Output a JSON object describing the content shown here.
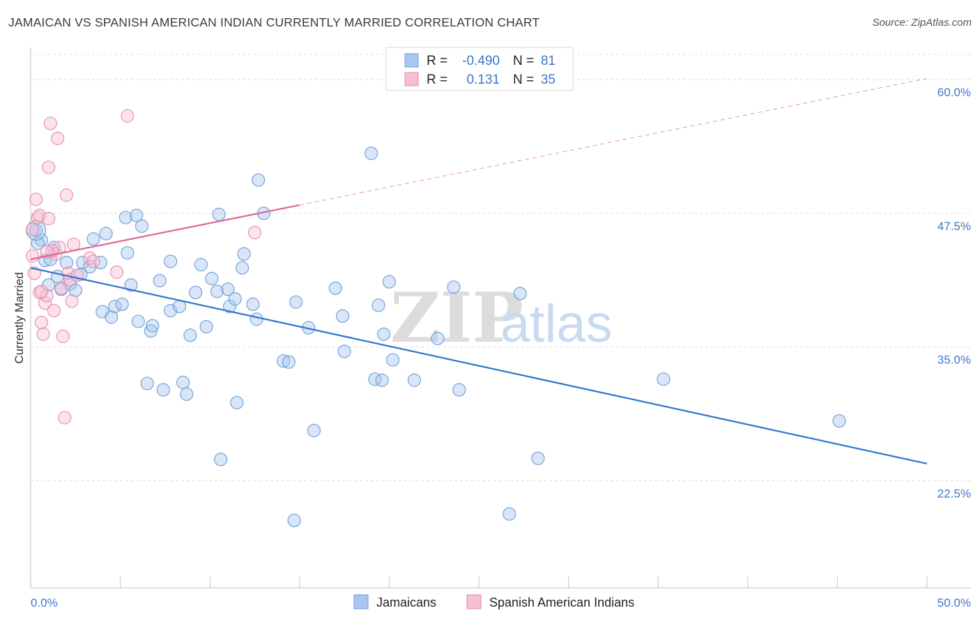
{
  "title": "JAMAICAN VS SPANISH AMERICAN INDIAN CURRENTLY MARRIED CORRELATION CHART",
  "source": "Source: ZipAtlas.com",
  "watermark": {
    "zip": "ZIP",
    "atlas": "atlas"
  },
  "colors": {
    "blue_fill": "#a9c7ee",
    "blue_stroke": "#6b9bd8",
    "blue_line": "#2f74d0",
    "pink_fill": "#f6bfd2",
    "pink_stroke": "#e68aab",
    "pink_line": "#e06590",
    "tick_text": "#3f76c9",
    "grid": "#dddddd"
  },
  "legend": {
    "rows": [
      {
        "r_label": "R =",
        "r_value": "-0.490",
        "n_label": "N =",
        "n_value": "81"
      },
      {
        "r_label": "R =",
        "r_value": "0.131",
        "n_label": "N =",
        "n_value": "35"
      }
    ]
  },
  "chart_data": {
    "type": "scatter",
    "title": "JAMAICAN VS SPANISH AMERICAN INDIAN CURRENTLY MARRIED CORRELATION CHART",
    "ylabel": "Currently Married",
    "xlim": [
      0,
      50
    ],
    "ylim": [
      12.5,
      63
    ],
    "x_tick_labels": [
      "0.0%",
      "50.0%"
    ],
    "y_ticks": [
      22.5,
      35.0,
      47.5,
      60.0
    ],
    "y_tick_labels": [
      "22.5%",
      "35.0%",
      "47.5%",
      "60.0%"
    ],
    "grid": true,
    "legend_placement": "top-center",
    "series": [
      {
        "name": "Jamaicans",
        "color": "#a9c7ee",
        "r": -0.49,
        "n": 81,
        "trend": {
          "x": [
            0,
            50
          ],
          "y": [
            42.4,
            24.1
          ],
          "style": "solid"
        },
        "points": [
          [
            0.3,
            45.9
          ],
          [
            0.6,
            45.0
          ],
          [
            0.8,
            43.1
          ],
          [
            1.0,
            40.8
          ],
          [
            1.1,
            43.2
          ],
          [
            1.3,
            44.3
          ],
          [
            1.5,
            41.6
          ],
          [
            1.7,
            40.4
          ],
          [
            2.0,
            42.9
          ],
          [
            2.2,
            40.9
          ],
          [
            2.5,
            40.3
          ],
          [
            2.8,
            41.8
          ],
          [
            2.9,
            42.9
          ],
          [
            3.3,
            42.5
          ],
          [
            3.5,
            45.1
          ],
          [
            3.9,
            42.9
          ],
          [
            4.0,
            38.3
          ],
          [
            4.2,
            45.6
          ],
          [
            4.5,
            37.8
          ],
          [
            4.7,
            38.8
          ],
          [
            5.1,
            39.0
          ],
          [
            5.3,
            47.1
          ],
          [
            5.4,
            43.8
          ],
          [
            5.6,
            40.8
          ],
          [
            5.9,
            47.3
          ],
          [
            6.0,
            37.4
          ],
          [
            6.2,
            46.3
          ],
          [
            6.5,
            31.6
          ],
          [
            6.7,
            36.5
          ],
          [
            6.8,
            37.0
          ],
          [
            7.2,
            41.2
          ],
          [
            7.4,
            31.0
          ],
          [
            7.8,
            38.4
          ],
          [
            7.8,
            43.0
          ],
          [
            8.3,
            38.8
          ],
          [
            8.5,
            31.7
          ],
          [
            8.7,
            30.6
          ],
          [
            8.9,
            36.1
          ],
          [
            9.2,
            40.1
          ],
          [
            9.5,
            42.7
          ],
          [
            9.8,
            36.9
          ],
          [
            10.1,
            41.4
          ],
          [
            10.4,
            40.2
          ],
          [
            10.5,
            47.4
          ],
          [
            10.6,
            24.5
          ],
          [
            11.0,
            40.4
          ],
          [
            11.1,
            38.8
          ],
          [
            11.4,
            39.5
          ],
          [
            11.5,
            29.8
          ],
          [
            11.8,
            42.4
          ],
          [
            11.9,
            43.7
          ],
          [
            12.4,
            39.0
          ],
          [
            12.6,
            37.6
          ],
          [
            12.7,
            50.6
          ],
          [
            13.0,
            47.5
          ],
          [
            14.1,
            33.7
          ],
          [
            14.4,
            33.6
          ],
          [
            14.7,
            18.8
          ],
          [
            14.8,
            39.2
          ],
          [
            15.5,
            36.8
          ],
          [
            15.8,
            27.2
          ],
          [
            17.0,
            40.5
          ],
          [
            17.4,
            37.9
          ],
          [
            17.5,
            34.6
          ],
          [
            19.0,
            53.1
          ],
          [
            19.2,
            32.0
          ],
          [
            19.4,
            38.9
          ],
          [
            19.6,
            31.9
          ],
          [
            19.7,
            36.2
          ],
          [
            20.0,
            41.1
          ],
          [
            20.2,
            33.8
          ],
          [
            21.4,
            31.9
          ],
          [
            22.7,
            35.8
          ],
          [
            23.6,
            40.6
          ],
          [
            23.9,
            31.0
          ],
          [
            26.7,
            19.4
          ],
          [
            27.3,
            40.0
          ],
          [
            28.3,
            24.6
          ],
          [
            35.3,
            32.0
          ],
          [
            45.1,
            28.1
          ],
          [
            0.4,
            44.7
          ]
        ]
      },
      {
        "name": "Spanish American Indians",
        "color": "#f6bfd2",
        "r": 0.131,
        "n": 35,
        "trend": {
          "x": [
            0,
            50
          ],
          "y": [
            43.2,
            60.1
          ],
          "solid_until_x": 15.0
        },
        "points": [
          [
            0.1,
            46.0
          ],
          [
            0.1,
            43.5
          ],
          [
            0.2,
            41.9
          ],
          [
            0.3,
            48.8
          ],
          [
            0.4,
            47.1
          ],
          [
            0.5,
            40.1
          ],
          [
            0.5,
            47.3
          ],
          [
            0.6,
            37.3
          ],
          [
            0.7,
            36.2
          ],
          [
            0.8,
            39.1
          ],
          [
            0.9,
            39.8
          ],
          [
            1.0,
            51.8
          ],
          [
            1.0,
            47.0
          ],
          [
            1.1,
            55.9
          ],
          [
            1.3,
            38.4
          ],
          [
            1.4,
            43.7
          ],
          [
            1.5,
            54.5
          ],
          [
            1.6,
            44.3
          ],
          [
            1.7,
            40.5
          ],
          [
            1.8,
            36.0
          ],
          [
            1.9,
            28.4
          ],
          [
            2.0,
            49.2
          ],
          [
            2.1,
            41.9
          ],
          [
            2.2,
            41.3
          ],
          [
            2.3,
            39.3
          ],
          [
            2.4,
            44.6
          ],
          [
            3.3,
            43.3
          ],
          [
            3.5,
            43.0
          ],
          [
            4.8,
            42.0
          ],
          [
            5.4,
            56.6
          ],
          [
            12.5,
            45.7
          ],
          [
            0.6,
            40.2
          ],
          [
            1.2,
            44.0
          ],
          [
            0.9,
            43.9
          ],
          [
            2.6,
            41.7
          ]
        ]
      }
    ]
  },
  "bottom_legend": [
    "Jamaicans",
    "Spanish American Indians"
  ]
}
